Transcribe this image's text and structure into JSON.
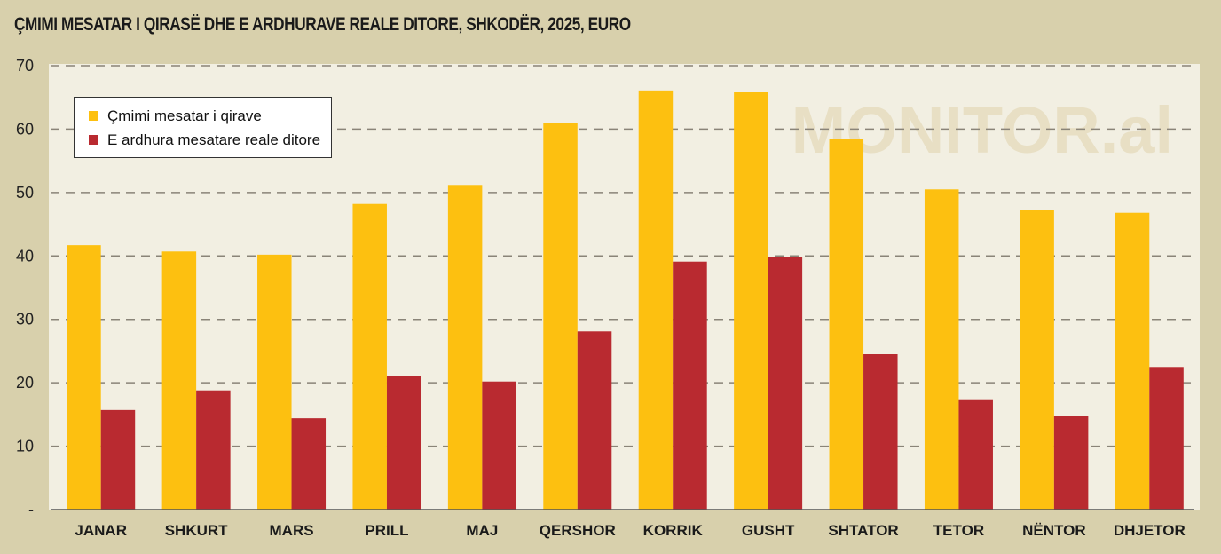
{
  "chart_data": {
    "type": "bar",
    "title": "ÇMIMI MESATAR I QIRASË DHE E ARDHURAVE REALE DITORE, SHKODËR, 2025, EURO",
    "watermark": "MONITOR.al",
    "xlabel": "",
    "ylabel": "",
    "ylim": [
      0,
      70
    ],
    "yticks": [
      "-",
      "10",
      "20",
      "30",
      "40",
      "50",
      "60",
      "70"
    ],
    "grid": true,
    "legend_position": "top-left",
    "categories": [
      "JANAR",
      "SHKURT",
      "MARS",
      "PRILL",
      "MAJ",
      "QERSHOR",
      "KORRIK",
      "GUSHT",
      "SHTATOR",
      "TETOR",
      "NËNTOR",
      "DHJETOR"
    ],
    "series": [
      {
        "name": "Çmimi mesatar i qirave",
        "color": "#fdc010",
        "values": [
          41.7,
          40.7,
          40.2,
          48.2,
          51.2,
          61.0,
          66.1,
          65.8,
          58.4,
          50.5,
          47.2,
          46.8
        ]
      },
      {
        "name": "E ardhura mesatare reale ditore",
        "color": "#b92a30",
        "values": [
          15.7,
          18.8,
          14.4,
          21.1,
          20.2,
          28.1,
          39.1,
          39.8,
          24.5,
          17.4,
          14.7,
          22.5
        ]
      }
    ]
  }
}
